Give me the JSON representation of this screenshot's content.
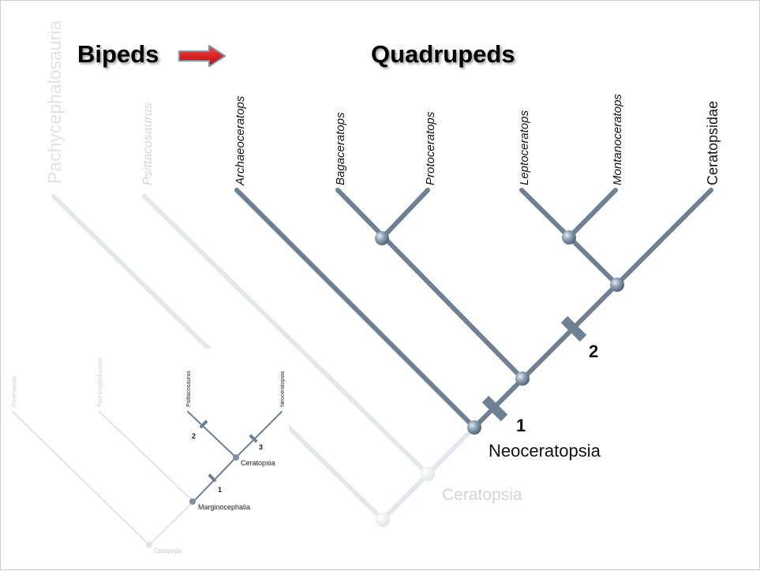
{
  "header": {
    "bipeds": "Bipeds",
    "quadrupeds": "Quadrupeds"
  },
  "main_tree": {
    "taxa": {
      "pachycephalosauria": "Pachycephalosauria",
      "psittacosaurus": "Psittacosaurus",
      "archaeoceratops": "Archaeoceratops",
      "bagaceratops": "Bagaceratops",
      "protoceratops": "Protoceratops",
      "leptoceratops": "Leptoceratops",
      "montanoceratops": "Montanoceratops",
      "ceratopsidae": "Ceratopsidae"
    },
    "nodes": {
      "neoceratopsia": "Neoceratopsia",
      "ceratopsia": "Ceratopsia"
    },
    "markers": {
      "m1": "1",
      "m2": "2"
    }
  },
  "inset_tree": {
    "taxa": {
      "ornithopoda": "Ornithopoda",
      "pachycephalosauria": "Pachycephalosauria",
      "psittacosaurus": "Psittacosaurus",
      "neoceratopsia": "Neoceratopsia"
    },
    "nodes": {
      "ceratopsia": "Ceratopsia",
      "marginocephalia": "Marginocephalia",
      "cerapoda": "Cerapoda"
    },
    "markers": {
      "m1": "1",
      "m2": "2",
      "m3": "3"
    }
  },
  "colors": {
    "branch": "#6e8193",
    "faded": "#e3e7eb",
    "arrow": "#e11f1f"
  }
}
